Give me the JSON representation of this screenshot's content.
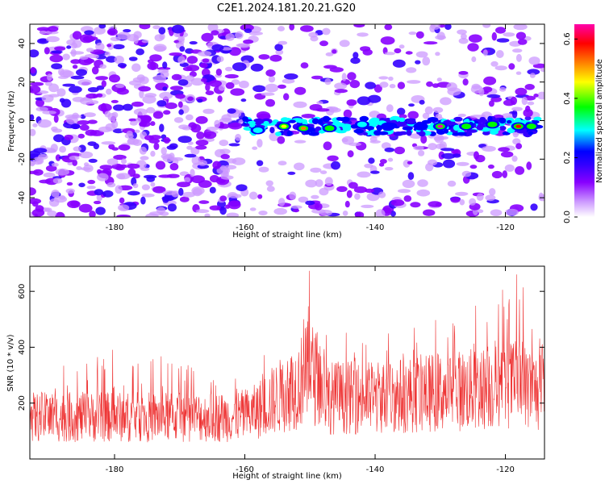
{
  "title": "C2E1.2024.181.20.21.G20",
  "chart_data": [
    {
      "type": "heatmap",
      "xlabel": "Height of straight line (km)",
      "ylabel": "Frequency (Hz)",
      "xlim": [
        -193,
        -114
      ],
      "ylim": [
        -50,
        50
      ],
      "x_ticks": [
        -180,
        -160,
        -140,
        -120
      ],
      "y_ticks": [
        -40,
        -20,
        0,
        20,
        40
      ],
      "colorbar": {
        "label": "Normalized spectral amplitude",
        "range": [
          0.0,
          0.65
        ],
        "ticks": [
          0.0,
          0.2,
          0.4,
          0.6
        ],
        "colors": [
          "#ffffff",
          "#cc99ff",
          "#8800ff",
          "#3300ff",
          "#0000ff",
          "#00ffff",
          "#00ff00",
          "#ffff00",
          "#ff8000",
          "#ff0000",
          "#ff00aa"
        ]
      },
      "signal_band": {
        "x_range": [
          -160,
          -115
        ],
        "frequency_center": -3,
        "bright_spots": [
          {
            "x": -186,
            "y": -3,
            "value": 0.18
          },
          {
            "x": -158,
            "y": -5,
            "value": 0.25
          },
          {
            "x": -154,
            "y": -3,
            "value": 0.45
          },
          {
            "x": -151,
            "y": -4,
            "value": 0.5
          },
          {
            "x": -147,
            "y": -4,
            "value": 0.3
          },
          {
            "x": -142,
            "y": -2,
            "value": 0.25
          },
          {
            "x": -138,
            "y": -3,
            "value": 0.2
          },
          {
            "x": -133,
            "y": -3,
            "value": 0.22
          },
          {
            "x": -130,
            "y": -3,
            "value": 0.6
          },
          {
            "x": -126,
            "y": -3,
            "value": 0.3
          },
          {
            "x": -122,
            "y": -2,
            "value": 0.35
          },
          {
            "x": -118,
            "y": -3,
            "value": 0.55
          },
          {
            "x": -116,
            "y": -3,
            "value": 0.3
          }
        ]
      }
    },
    {
      "type": "line",
      "xlabel": "Height of straight line (km)",
      "ylabel": "SNR (10 * v/v)",
      "xlim": [
        -193,
        -114
      ],
      "ylim": [
        0,
        690
      ],
      "x_ticks": [
        -180,
        -160,
        -140,
        -120
      ],
      "y_ticks": [
        200,
        400,
        600
      ],
      "series_color": "#ee3333",
      "envelope": [
        {
          "x": -193,
          "base": 150,
          "peak": 300
        },
        {
          "x": -180,
          "base": 150,
          "peak": 420
        },
        {
          "x": -170,
          "base": 150,
          "peak": 350
        },
        {
          "x": -162,
          "base": 150,
          "peak": 280
        },
        {
          "x": -159,
          "base": 160,
          "peak": 320
        },
        {
          "x": -155,
          "base": 220,
          "peak": 450
        },
        {
          "x": -152,
          "base": 260,
          "peak": 520
        },
        {
          "x": -150,
          "base": 320,
          "peak": 690
        },
        {
          "x": -147,
          "base": 220,
          "peak": 450
        },
        {
          "x": -140,
          "base": 220,
          "peak": 460
        },
        {
          "x": -135,
          "base": 230,
          "peak": 470
        },
        {
          "x": -130,
          "base": 240,
          "peak": 520
        },
        {
          "x": -124,
          "base": 250,
          "peak": 560
        },
        {
          "x": -118,
          "base": 270,
          "peak": 690
        },
        {
          "x": -114,
          "base": 230,
          "peak": 420
        }
      ]
    }
  ]
}
